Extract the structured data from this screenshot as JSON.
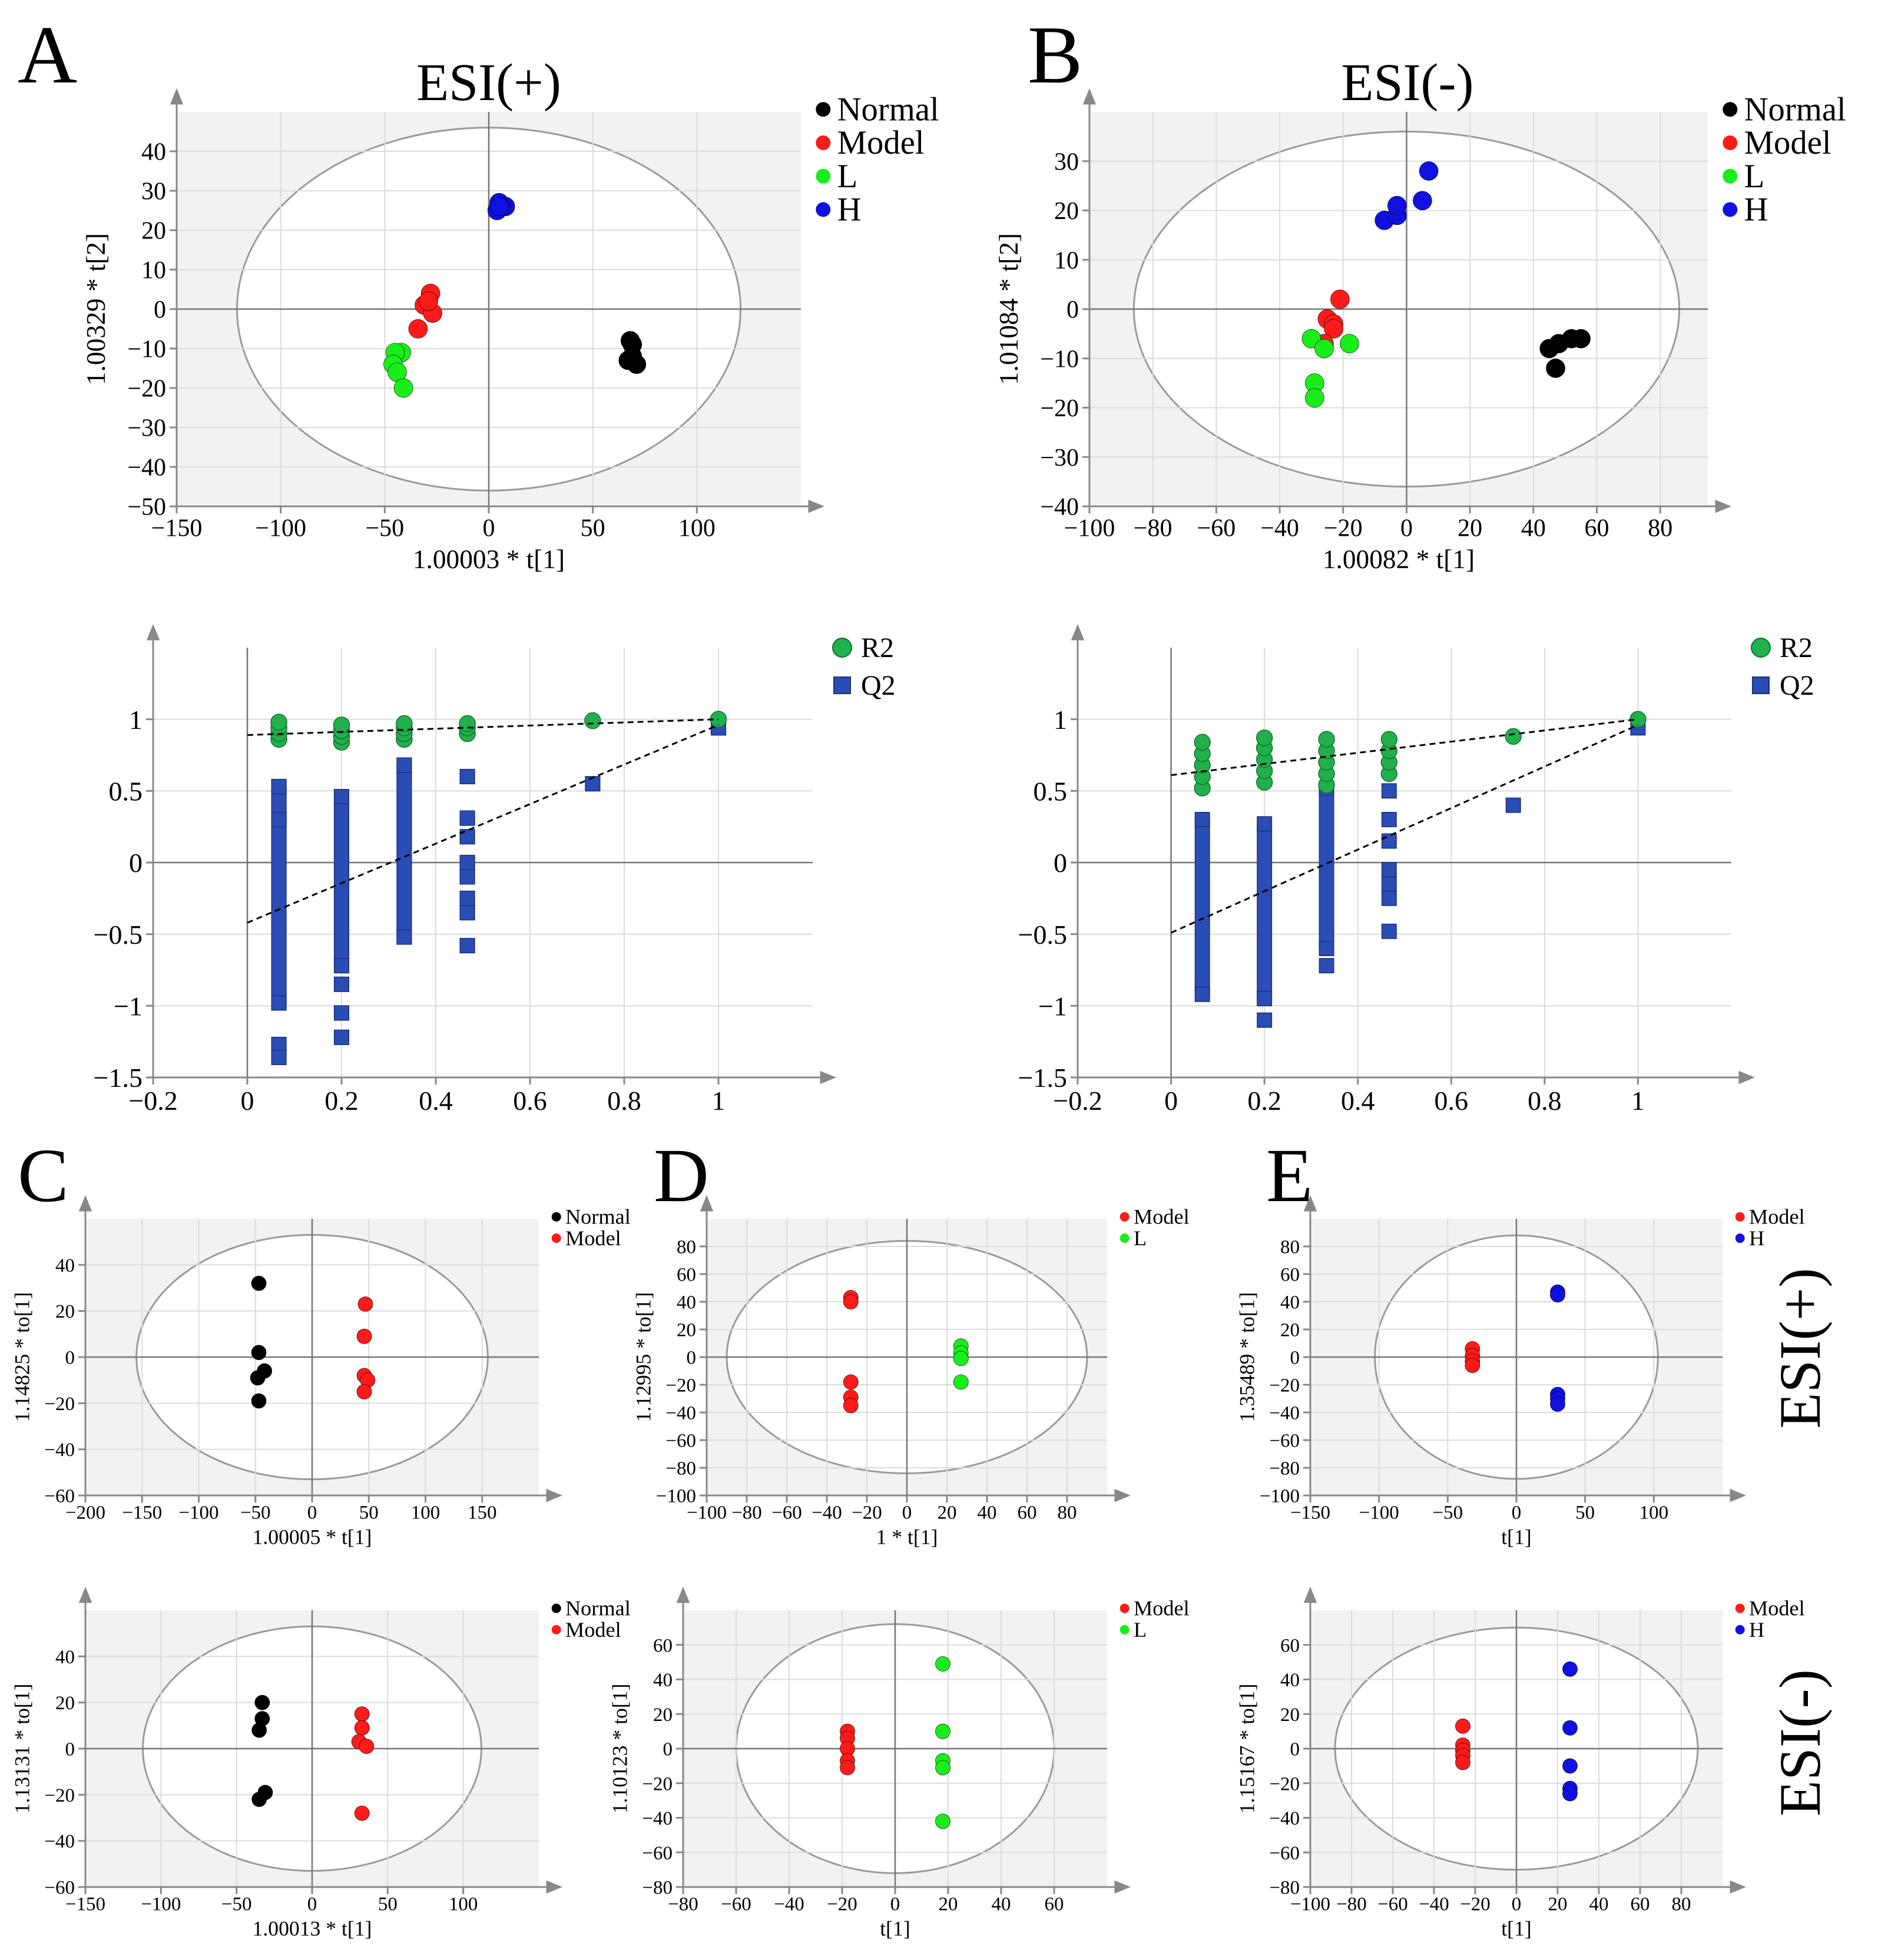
{
  "panel_letters": [
    "A",
    "B",
    "C",
    "D",
    "E"
  ],
  "side_labels": {
    "esi_pos": "ESI(+)",
    "esi_neg": "ESI(-)"
  },
  "colors": {
    "Normal": "#000000",
    "Model": "#ff1a1a",
    "L": "#1aee1a",
    "H": "#1010e0",
    "R2": "#21b04b",
    "Q2": "#2a4db5",
    "plot_bg": "#f2f2f2",
    "grid": "#dcdcdc"
  },
  "chart_data": [
    {
      "id": "A",
      "type": "scatter",
      "title": "ESI(+)",
      "xlabel": "1.00003 * t[1]",
      "ylabel": "1.00329 * t[2]",
      "xlim": [
        -150,
        150
      ],
      "ylim": [
        -50,
        50
      ],
      "xticks": [
        -150,
        -100,
        -50,
        0,
        50,
        100
      ],
      "yticks": [
        -50,
        -40,
        -30,
        -20,
        -10,
        0,
        10,
        20,
        30,
        40
      ],
      "ellipse": {
        "rx": 121,
        "ry": 46
      },
      "legend": [
        "Normal",
        "Model",
        "L",
        "H"
      ],
      "series": [
        {
          "name": "Normal",
          "points": [
            [
              68,
              -8
            ],
            [
              69,
              -9
            ],
            [
              67,
              -13
            ],
            [
              71,
              -14
            ],
            [
              69,
              -12
            ]
          ]
        },
        {
          "name": "Model",
          "points": [
            [
              -28,
              4
            ],
            [
              -31,
              1
            ],
            [
              -27,
              -1
            ],
            [
              -34,
              -5
            ],
            [
              -29,
              2
            ]
          ]
        },
        {
          "name": "L",
          "points": [
            [
              -42,
              -11
            ],
            [
              -45,
              -11
            ],
            [
              -46,
              -14
            ],
            [
              -44,
              -16
            ],
            [
              -41,
              -20
            ]
          ]
        },
        {
          "name": "H",
          "points": [
            [
              5,
              27
            ],
            [
              8,
              26
            ],
            [
              4,
              25
            ],
            [
              6,
              26
            ],
            [
              5,
              26
            ]
          ]
        }
      ]
    },
    {
      "id": "B",
      "type": "scatter",
      "title": "ESI(-)",
      "xlabel": "1.00082 * t[1]",
      "ylabel": "1.01084 * t[2]",
      "xlim": [
        -100,
        95
      ],
      "ylim": [
        -40,
        40
      ],
      "xticks": [
        -100,
        -80,
        -60,
        -40,
        -20,
        0,
        20,
        40,
        60,
        80
      ],
      "yticks": [
        -40,
        -30,
        -20,
        -10,
        0,
        10,
        20,
        30
      ],
      "ellipse": {
        "rx": 86,
        "ry": 36
      },
      "legend": [
        "Normal",
        "Model",
        "L",
        "H"
      ],
      "series": [
        {
          "name": "Normal",
          "points": [
            [
              45,
              -8
            ],
            [
              48,
              -7
            ],
            [
              52,
              -6
            ],
            [
              55,
              -6
            ],
            [
              47,
              -12
            ]
          ]
        },
        {
          "name": "Model",
          "points": [
            [
              -21,
              2
            ],
            [
              -25,
              -2
            ],
            [
              -23,
              -3
            ],
            [
              -23,
              -4
            ],
            [
              -26,
              -7
            ]
          ]
        },
        {
          "name": "L",
          "points": [
            [
              -30,
              -6
            ],
            [
              -26,
              -8
            ],
            [
              -18,
              -7
            ],
            [
              -29,
              -15
            ],
            [
              -29,
              -18
            ]
          ]
        },
        {
          "name": "H",
          "points": [
            [
              -7,
              18
            ],
            [
              -3,
              19
            ],
            [
              -3,
              21
            ],
            [
              5,
              22
            ],
            [
              7,
              28
            ]
          ]
        }
      ]
    },
    {
      "id": "A2",
      "type": "scatter",
      "subtype": "permutation",
      "xlabel": "",
      "ylabel": "",
      "xlim": [
        -0.2,
        1.2
      ],
      "ylim": [
        -1.5,
        1.5
      ],
      "xticks": [
        -0.2,
        0,
        0.2,
        0.4,
        0.6,
        0.8,
        1
      ],
      "yticks": [
        -1.5,
        -1,
        -0.5,
        0,
        0.5,
        1
      ],
      "legend": [
        "R2",
        "Q2"
      ],
      "r2_points": [
        [
          0.067,
          0.86
        ],
        [
          0.067,
          0.9
        ],
        [
          0.067,
          0.94
        ],
        [
          0.067,
          0.98
        ],
        [
          0.2,
          0.84
        ],
        [
          0.2,
          0.88
        ],
        [
          0.2,
          0.92
        ],
        [
          0.2,
          0.96
        ],
        [
          0.333,
          0.86
        ],
        [
          0.333,
          0.9
        ],
        [
          0.333,
          0.94
        ],
        [
          0.333,
          0.97
        ],
        [
          0.467,
          0.9
        ],
        [
          0.467,
          0.94
        ],
        [
          0.467,
          0.97
        ],
        [
          0.733,
          0.99
        ],
        [
          1,
          1
        ]
      ],
      "q2_points": [
        [
          0.067,
          0.53
        ],
        [
          0.067,
          0.3
        ],
        [
          0.067,
          -0.98
        ],
        [
          0.067,
          -1.27
        ],
        [
          0.067,
          -1.36
        ],
        [
          0.2,
          0.46
        ],
        [
          0.2,
          -0.72
        ],
        [
          0.2,
          -0.85
        ],
        [
          0.2,
          -1.05
        ],
        [
          0.2,
          -1.22
        ],
        [
          0.333,
          0.68
        ],
        [
          0.333,
          -0.52
        ],
        [
          0.467,
          0.6
        ],
        [
          0.467,
          0.31
        ],
        [
          0.467,
          0.18
        ],
        [
          0.467,
          0.0
        ],
        [
          0.467,
          -0.1
        ],
        [
          0.467,
          -0.25
        ],
        [
          0.467,
          -0.35
        ],
        [
          0.467,
          -0.58
        ],
        [
          0.733,
          0.55
        ],
        [
          1,
          0.94
        ]
      ],
      "q2_bars": [
        [
          0.067,
          -0.98,
          0.53
        ],
        [
          0.2,
          -0.72,
          0.46
        ],
        [
          0.333,
          -0.52,
          0.68
        ]
      ],
      "r2_line": [
        [
          0,
          0.89
        ],
        [
          1,
          1
        ]
      ],
      "q2_line": [
        [
          0,
          -0.42
        ],
        [
          1,
          0.96
        ]
      ]
    },
    {
      "id": "B2",
      "type": "scatter",
      "subtype": "permutation",
      "xlabel": "",
      "ylabel": "",
      "xlim": [
        -0.2,
        1.2
      ],
      "ylim": [
        -1.5,
        1.5
      ],
      "xticks": [
        -0.2,
        0,
        0.2,
        0.4,
        0.6,
        0.8,
        1
      ],
      "yticks": [
        -1.5,
        -1,
        -0.5,
        0,
        0.5,
        1
      ],
      "legend": [
        "R2",
        "Q2"
      ],
      "r2_points": [
        [
          0.067,
          0.52
        ],
        [
          0.067,
          0.6
        ],
        [
          0.067,
          0.68
        ],
        [
          0.067,
          0.76
        ],
        [
          0.067,
          0.84
        ],
        [
          0.2,
          0.56
        ],
        [
          0.2,
          0.64
        ],
        [
          0.2,
          0.72
        ],
        [
          0.2,
          0.8
        ],
        [
          0.2,
          0.87
        ],
        [
          0.333,
          0.54
        ],
        [
          0.333,
          0.62
        ],
        [
          0.333,
          0.7
        ],
        [
          0.333,
          0.78
        ],
        [
          0.333,
          0.86
        ],
        [
          0.467,
          0.62
        ],
        [
          0.467,
          0.7
        ],
        [
          0.467,
          0.78
        ],
        [
          0.467,
          0.86
        ],
        [
          0.733,
          0.88
        ],
        [
          1,
          1
        ]
      ],
      "q2_points": [
        [
          0.067,
          0.3
        ],
        [
          0.067,
          -0.92
        ],
        [
          0.2,
          0.27
        ],
        [
          0.2,
          -0.95
        ],
        [
          0.2,
          -1.1
        ],
        [
          0.333,
          0.52
        ],
        [
          0.333,
          -0.6
        ],
        [
          0.333,
          -0.72
        ],
        [
          0.467,
          0.5
        ],
        [
          0.467,
          0.3
        ],
        [
          0.467,
          0.15
        ],
        [
          0.467,
          -0.05
        ],
        [
          0.467,
          -0.15
        ],
        [
          0.467,
          -0.25
        ],
        [
          0.467,
          -0.48
        ],
        [
          0.733,
          0.4
        ],
        [
          1,
          0.94
        ]
      ],
      "q2_bars": [
        [
          0.067,
          -0.92,
          0.3
        ],
        [
          0.2,
          -0.95,
          0.27
        ],
        [
          0.333,
          -0.6,
          0.52
        ]
      ],
      "r2_line": [
        [
          0,
          0.61
        ],
        [
          1,
          1
        ]
      ],
      "q2_line": [
        [
          0,
          -0.49
        ],
        [
          1,
          0.96
        ]
      ]
    },
    {
      "id": "C1",
      "type": "scatter",
      "xlabel": "1.00005 * t[1]",
      "ylabel": "1.14825 * to[1]",
      "xlim": [
        -200,
        200
      ],
      "ylim": [
        -60,
        60
      ],
      "xticks": [
        -200,
        -150,
        -100,
        -50,
        0,
        50,
        100,
        150
      ],
      "yticks": [
        -60,
        -40,
        -20,
        0,
        20,
        40
      ],
      "ellipse": {
        "rx": 155,
        "ry": 53
      },
      "legend": [
        "Normal",
        "Model"
      ],
      "series": [
        {
          "name": "Normal",
          "points": [
            [
              -47,
              32
            ],
            [
              -47,
              2
            ],
            [
              -42,
              -6
            ],
            [
              -48,
              -9
            ],
            [
              -47,
              -19
            ]
          ]
        },
        {
          "name": "Model",
          "points": [
            [
              47,
              23
            ],
            [
              46,
              9
            ],
            [
              46,
              -8
            ],
            [
              49,
              -10
            ],
            [
              46,
              -15
            ]
          ]
        }
      ]
    },
    {
      "id": "D1",
      "type": "scatter",
      "xlabel": "1 * t[1]",
      "ylabel": "1.12995 * to[1]",
      "xlim": [
        -100,
        100
      ],
      "ylim": [
        -100,
        100
      ],
      "xticks": [
        -100,
        -80,
        -60,
        -40,
        -20,
        0,
        20,
        40,
        60,
        80
      ],
      "yticks": [
        -100,
        -80,
        -60,
        -40,
        -20,
        0,
        20,
        40,
        60,
        80
      ],
      "ellipse": {
        "rx": 90,
        "ry": 84
      },
      "legend": [
        "Model",
        "L"
      ],
      "series": [
        {
          "name": "Model",
          "points": [
            [
              -28,
              43
            ],
            [
              -28,
              40
            ],
            [
              -28,
              -18
            ],
            [
              -28,
              -29
            ],
            [
              -28,
              -35
            ]
          ]
        },
        {
          "name": "L",
          "points": [
            [
              27,
              8
            ],
            [
              27,
              3
            ],
            [
              27,
              -1
            ],
            [
              27,
              -18
            ]
          ]
        }
      ]
    },
    {
      "id": "E1",
      "type": "scatter",
      "xlabel": "t[1]",
      "ylabel": "1.35489 * to[1]",
      "xlim": [
        -150,
        150
      ],
      "ylim": [
        -100,
        100
      ],
      "xticks": [
        -150,
        -100,
        -50,
        0,
        50,
        100
      ],
      "yticks": [
        -100,
        -80,
        -60,
        -40,
        -20,
        0,
        20,
        40,
        60,
        80
      ],
      "ellipse": {
        "rx": 103,
        "ry": 88
      },
      "legend": [
        "Model",
        "H"
      ],
      "series": [
        {
          "name": "Model",
          "points": [
            [
              -32,
              6
            ],
            [
              -32,
              1
            ],
            [
              -32,
              -3
            ],
            [
              -32,
              -6
            ]
          ]
        },
        {
          "name": "H",
          "points": [
            [
              30,
              47
            ],
            [
              30,
              45
            ],
            [
              30,
              -27
            ],
            [
              30,
              -30
            ],
            [
              30,
              -34
            ]
          ]
        }
      ]
    },
    {
      "id": "C2",
      "type": "scatter",
      "xlabel": "1.00013 * t[1]",
      "ylabel": "1.13131 * to[1]",
      "xlim": [
        -150,
        150
      ],
      "ylim": [
        -60,
        60
      ],
      "xticks": [
        -150,
        -100,
        -50,
        0,
        50,
        100
      ],
      "yticks": [
        -60,
        -40,
        -20,
        0,
        20,
        40
      ],
      "ellipse": {
        "rx": 112,
        "ry": 53
      },
      "legend": [
        "Normal",
        "Model"
      ],
      "series": [
        {
          "name": "Normal",
          "points": [
            [
              -33,
              20
            ],
            [
              -33,
              13
            ],
            [
              -35,
              8
            ],
            [
              -31,
              -19
            ],
            [
              -35,
              -22
            ]
          ]
        },
        {
          "name": "Model",
          "points": [
            [
              33,
              15
            ],
            [
              33,
              9
            ],
            [
              31,
              3
            ],
            [
              36,
              1
            ],
            [
              33,
              -28
            ]
          ]
        }
      ]
    },
    {
      "id": "D2",
      "type": "scatter",
      "xlabel": "t[1]",
      "ylabel": "1.10123 * to[1]",
      "xlim": [
        -80,
        80
      ],
      "ylim": [
        -80,
        80
      ],
      "xticks": [
        -80,
        -60,
        -40,
        -20,
        0,
        20,
        40,
        60
      ],
      "yticks": [
        -80,
        -60,
        -40,
        -20,
        0,
        20,
        40,
        60
      ],
      "ellipse": {
        "rx": 60,
        "ry": 72
      },
      "legend": [
        "Model",
        "L"
      ],
      "series": [
        {
          "name": "Model",
          "points": [
            [
              -18,
              10
            ],
            [
              -18,
              6
            ],
            [
              -18,
              0
            ],
            [
              -18,
              -7
            ],
            [
              -18,
              -11
            ]
          ]
        },
        {
          "name": "L",
          "points": [
            [
              18,
              49
            ],
            [
              18,
              10
            ],
            [
              18,
              -7
            ],
            [
              18,
              -11
            ],
            [
              18,
              -42
            ]
          ]
        }
      ]
    },
    {
      "id": "E2",
      "type": "scatter",
      "xlabel": "t[1]",
      "ylabel": "1.15167 * to[1]",
      "xlim": [
        -100,
        100
      ],
      "ylim": [
        -80,
        80
      ],
      "xticks": [
        -100,
        -80,
        -60,
        -40,
        -20,
        0,
        20,
        40,
        60,
        80
      ],
      "yticks": [
        -80,
        -60,
        -40,
        -20,
        0,
        20,
        40,
        60
      ],
      "ellipse": {
        "rx": 88,
        "ry": 70
      },
      "legend": [
        "Model",
        "H"
      ],
      "series": [
        {
          "name": "Model",
          "points": [
            [
              -26,
              13
            ],
            [
              -26,
              2
            ],
            [
              -26,
              -1
            ],
            [
              -26,
              -4
            ],
            [
              -26,
              -8
            ]
          ]
        },
        {
          "name": "H",
          "points": [
            [
              26,
              46
            ],
            [
              26,
              12
            ],
            [
              26,
              -10
            ],
            [
              26,
              -23
            ],
            [
              26,
              -26
            ]
          ]
        }
      ]
    }
  ]
}
